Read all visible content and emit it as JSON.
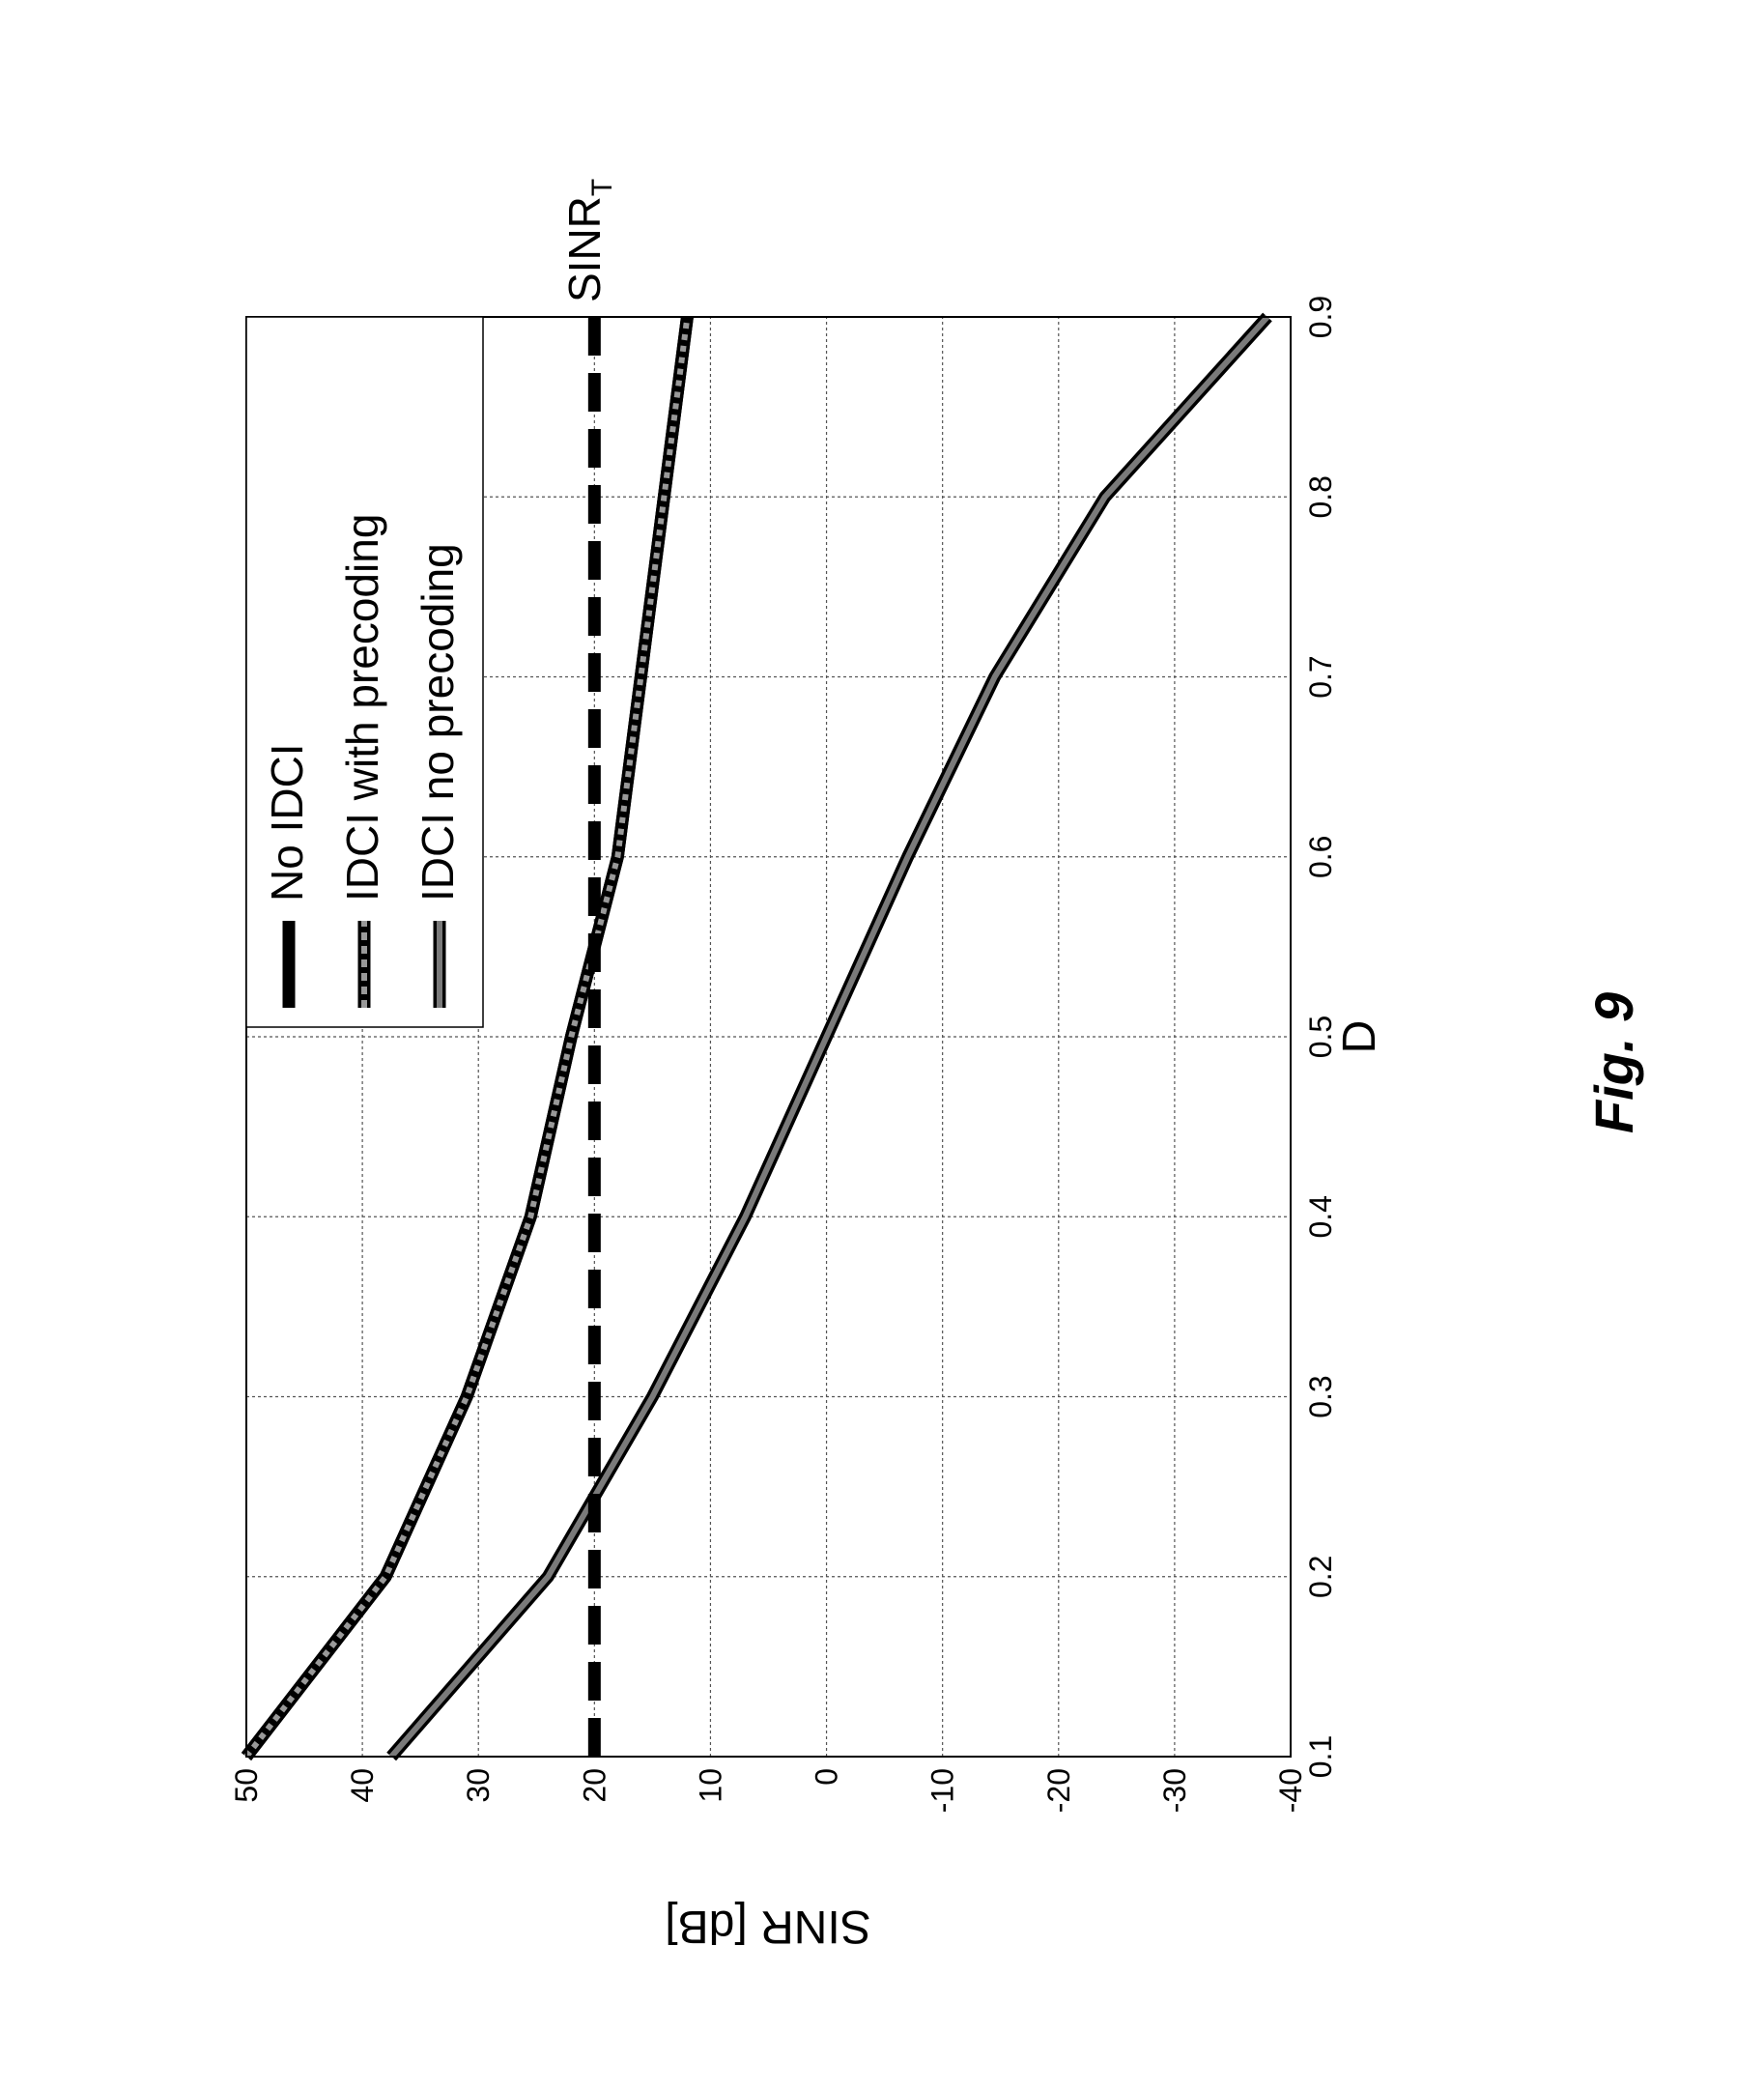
{
  "figure_label": "Fig. 9",
  "chart_data": {
    "type": "line",
    "title": "",
    "xlabel": "D",
    "ylabel": "SINR [dB]",
    "xlim": [
      0.1,
      0.9
    ],
    "ylim": [
      -40,
      50
    ],
    "grid": true,
    "orientation": "rotated 90° counter-clockwise on page",
    "x_ticks": [
      "0.1",
      "0.2",
      "0.3",
      "0.4",
      "0.5",
      "0.6",
      "0.7",
      "0.8",
      "0.9"
    ],
    "y_ticks": [
      "50",
      "40",
      "30",
      "20",
      "10",
      "0",
      "-10",
      "-20",
      "-30",
      "-40"
    ],
    "x": [
      0.1,
      0.2,
      0.3,
      0.4,
      0.5,
      0.6,
      0.7,
      0.8,
      0.9
    ],
    "series": [
      {
        "name": "No IDCI",
        "style": "solid",
        "values": [
          50,
          38,
          31,
          25.5,
          22,
          18,
          16,
          14,
          12
        ]
      },
      {
        "name": "IDCI with precoding",
        "style": "dotted",
        "values": [
          50,
          38,
          31,
          25.5,
          22,
          18,
          16,
          14,
          12
        ]
      },
      {
        "name": "IDCI no precoding",
        "style": "solid-gray",
        "values": [
          37.5,
          24,
          15,
          7,
          0,
          -7,
          -14.5,
          -24,
          -38
        ]
      }
    ],
    "threshold": {
      "label": "SINR",
      "subscript": "T",
      "value": 20,
      "style": "dashed"
    },
    "legend_placement": "top-right",
    "colors": {
      "line": "#7a7a7a",
      "edge": "#000000",
      "grid": "#555555"
    }
  }
}
